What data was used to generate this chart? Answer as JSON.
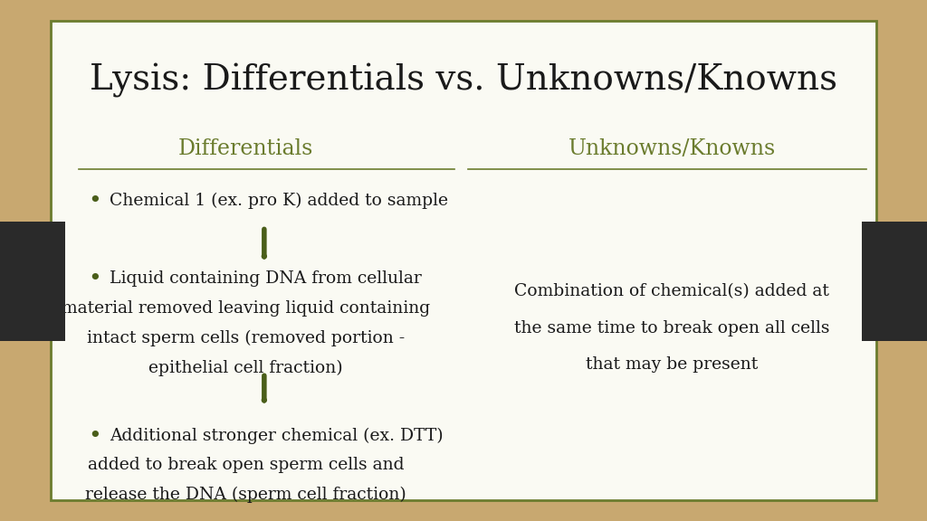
{
  "title": "Lysis: Differentials vs. Unknowns/Knowns",
  "title_fontsize": 28,
  "title_color": "#1a1a1a",
  "title_font": "serif",
  "col1_header": "Differentials",
  "col2_header": "Unknowns/Knowns",
  "header_color": "#6b7c2e",
  "header_fontsize": 17,
  "bullet_fontsize": 18,
  "bullet_color": "#4a5e1a",
  "bullet1": "Chemical 1 (ex. pro K) added to sample",
  "bullet2_lines": [
    "Liquid containing DNA from cellular",
    "material removed leaving liquid containing",
    "intact sperm cells (removed portion -",
    "epithelial cell fraction)"
  ],
  "bullet3_lines": [
    "Additional stronger chemical (ex. DTT)",
    "added to break open sperm cells and",
    "release the DNA (sperm cell fraction)"
  ],
  "right_text_lines": [
    "Combination of chemical(s) added at",
    "the same time to break open all cells",
    "that may be present"
  ],
  "text_color": "#1a1a1a",
  "text_fontsize": 13.5,
  "arrow_color": "#4a5e1a",
  "bg_outer": "#c8a870",
  "bg_slide": "#fafaf3",
  "border_color": "#6b7c2e",
  "black_tab_color": "#2a2a2a"
}
